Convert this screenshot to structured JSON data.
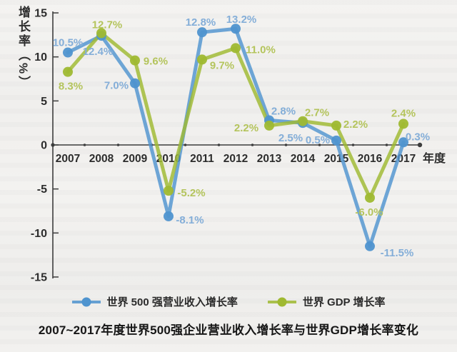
{
  "chart_data": {
    "type": "line",
    "title": "2007~2017年度世界500强企业营业收入增长率与世界GDP增长率变化",
    "xlabel": "年度",
    "ylabel": "增长率（%）",
    "ylim": [
      -15,
      15
    ],
    "yticks": [
      15,
      10,
      5,
      0,
      -5,
      -10,
      -15
    ],
    "grid": false,
    "legend_position": "bottom",
    "categories": [
      "2007",
      "2008",
      "2009",
      "2010",
      "2011",
      "2012",
      "2013",
      "2014",
      "2015",
      "2016",
      "2017"
    ],
    "series": [
      {
        "name": "世界 500 强营业收入增长率",
        "color": "#4f94cf",
        "label_color": "#84aed8",
        "values": [
          10.5,
          12.4,
          7.0,
          -8.1,
          12.8,
          13.2,
          2.8,
          2.5,
          0.5,
          -11.5,
          0.3
        ],
        "labels": [
          "10.5%",
          "12.4%",
          "7.0%",
          "-8.1%",
          "12.8%",
          "13.2%",
          "2.8%",
          "2.5%",
          "0.5%",
          "-11.5%",
          "0.3%"
        ]
      },
      {
        "name": "世界 GDP 增长率",
        "color": "#9fb931",
        "label_color": "#b4c45c",
        "values": [
          8.3,
          12.7,
          9.6,
          -5.2,
          9.7,
          11.0,
          2.2,
          2.7,
          2.2,
          -6.0,
          2.4
        ],
        "labels": [
          "8.3%",
          "12.7%",
          "9.6%",
          "-5.2%",
          "9.7%",
          "11.0%",
          "2.2%",
          "2.7%",
          "2.2%",
          "-6.0%",
          "2.4%"
        ]
      }
    ],
    "axis_color": "#3d3d3d",
    "tick_label_color": "#2d2d2d"
  }
}
